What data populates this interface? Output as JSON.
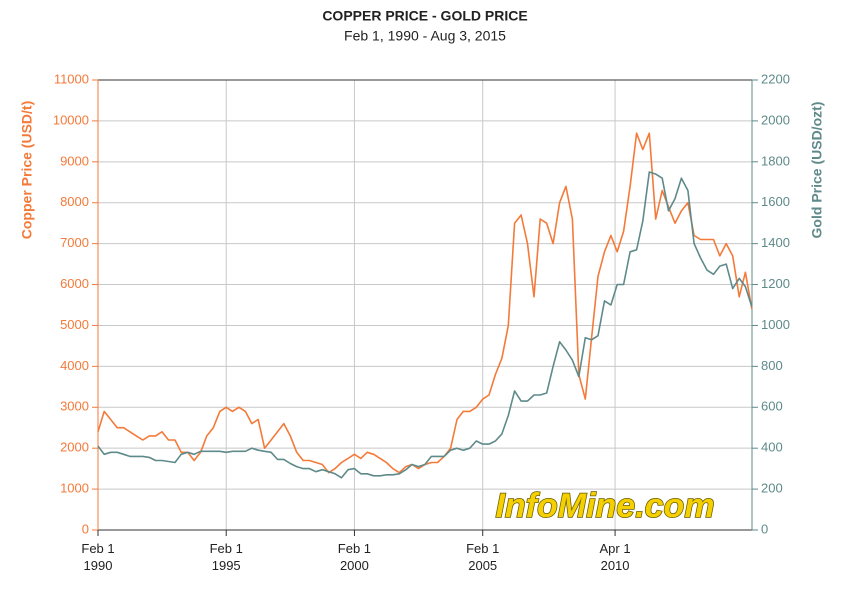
{
  "chart_data": {
    "type": "line",
    "title": "COPPER PRICE - GOLD PRICE",
    "subtitle": "Feb 1, 1990 - Aug 3, 2015",
    "y_label": "Copper Price (USD/t)",
    "y2_label": "Gold Price (USD/ozt)",
    "watermark": "InfoMine.com",
    "grid": true,
    "xlim": [
      "1990-02-01",
      "2015-08-03"
    ],
    "xticks": [
      {
        "value": "1990-02-01",
        "label": "Feb 1\n1990"
      },
      {
        "value": "1995-02-01",
        "label": "Feb 1\n1995"
      },
      {
        "value": "2000-02-01",
        "label": "Feb 1\n2000"
      },
      {
        "value": "2005-02-01",
        "label": "Feb 1\n2005"
      },
      {
        "value": "2010-04-01",
        "label": "Apr 1\n2010"
      }
    ],
    "ylim": [
      0,
      11000
    ],
    "yticks": [
      0,
      1000,
      2000,
      3000,
      4000,
      5000,
      6000,
      7000,
      8000,
      9000,
      10000,
      11000
    ],
    "y2lim": [
      0,
      2200
    ],
    "y2ticks": [
      0,
      200,
      400,
      600,
      800,
      1000,
      1200,
      1400,
      1600,
      1800,
      2000,
      2200
    ],
    "x": [
      "1990-02-01",
      "1990-05-01",
      "1990-08-01",
      "1990-11-01",
      "1991-02-01",
      "1991-05-01",
      "1991-08-01",
      "1991-11-01",
      "1992-02-01",
      "1992-05-01",
      "1992-08-01",
      "1992-11-01",
      "1993-02-01",
      "1993-05-01",
      "1993-08-01",
      "1993-11-01",
      "1994-02-01",
      "1994-05-01",
      "1994-08-01",
      "1994-11-01",
      "1995-02-01",
      "1995-05-01",
      "1995-08-01",
      "1995-11-01",
      "1996-02-01",
      "1996-05-01",
      "1996-08-01",
      "1996-11-01",
      "1997-02-01",
      "1997-05-01",
      "1997-08-01",
      "1997-11-01",
      "1998-02-01",
      "1998-05-01",
      "1998-08-01",
      "1998-11-01",
      "1999-02-01",
      "1999-05-01",
      "1999-08-01",
      "1999-11-01",
      "2000-02-01",
      "2000-05-01",
      "2000-08-01",
      "2000-11-01",
      "2001-02-01",
      "2001-05-01",
      "2001-08-01",
      "2001-11-01",
      "2002-02-01",
      "2002-05-01",
      "2002-08-01",
      "2002-11-01",
      "2003-02-01",
      "2003-05-01",
      "2003-08-01",
      "2003-11-01",
      "2004-02-01",
      "2004-05-01",
      "2004-08-01",
      "2004-11-01",
      "2005-02-01",
      "2005-05-01",
      "2005-08-01",
      "2005-11-01",
      "2006-02-01",
      "2006-05-01",
      "2006-08-01",
      "2006-11-01",
      "2007-02-01",
      "2007-05-01",
      "2007-08-01",
      "2007-11-01",
      "2008-02-01",
      "2008-05-01",
      "2008-08-01",
      "2008-11-01",
      "2009-02-01",
      "2009-05-01",
      "2009-08-01",
      "2009-11-01",
      "2010-02-01",
      "2010-05-01",
      "2010-08-01",
      "2010-11-01",
      "2011-02-01",
      "2011-05-01",
      "2011-08-01",
      "2011-11-01",
      "2012-02-01",
      "2012-05-01",
      "2012-08-01",
      "2012-11-01",
      "2013-02-01",
      "2013-05-01",
      "2013-08-01",
      "2013-11-01",
      "2014-02-01",
      "2014-05-01",
      "2014-08-01",
      "2014-11-01",
      "2015-02-01",
      "2015-05-01",
      "2015-08-01"
    ],
    "series": [
      {
        "name": "Copper Price (USD/t)",
        "color": "#f47a3a",
        "axis": "y",
        "values": [
          2400,
          2900,
          2700,
          2500,
          2500,
          2400,
          2300,
          2200,
          2300,
          2300,
          2400,
          2200,
          2200,
          1900,
          1900,
          1700,
          1900,
          2300,
          2500,
          2900,
          3000,
          2900,
          3000,
          2900,
          2600,
          2700,
          2000,
          2200,
          2400,
          2600,
          2300,
          1900,
          1700,
          1700,
          1650,
          1600,
          1400,
          1500,
          1650,
          1750,
          1850,
          1750,
          1900,
          1850,
          1750,
          1650,
          1500,
          1400,
          1550,
          1600,
          1500,
          1600,
          1650,
          1650,
          1800,
          2000,
          2700,
          2900,
          2900,
          3000,
          3200,
          3300,
          3800,
          4200,
          5000,
          7500,
          7700,
          7000,
          5700,
          7600,
          7500,
          7000,
          8000,
          8400,
          7600,
          3800,
          3200,
          4700,
          6200,
          6800,
          7200,
          6800,
          7300,
          8400,
          9700,
          9300,
          9700,
          7600,
          8300,
          7900,
          7500,
          7800,
          8000,
          7200,
          7100,
          7100,
          7100,
          6700,
          7000,
          6700,
          5700,
          6300,
          5400
        ]
      },
      {
        "name": "Gold Price (USD/ozt)",
        "color": "#5f8a8a",
        "axis": "y2",
        "values": [
          410,
          370,
          380,
          380,
          370,
          360,
          360,
          360,
          355,
          340,
          340,
          335,
          330,
          370,
          380,
          370,
          385,
          385,
          385,
          385,
          380,
          385,
          385,
          385,
          400,
          390,
          385,
          380,
          345,
          345,
          325,
          310,
          300,
          300,
          285,
          295,
          285,
          275,
          255,
          295,
          300,
          275,
          275,
          265,
          265,
          270,
          270,
          275,
          295,
          320,
          310,
          320,
          360,
          360,
          360,
          390,
          400,
          390,
          400,
          435,
          420,
          420,
          435,
          470,
          560,
          680,
          630,
          630,
          660,
          660,
          670,
          800,
          920,
          880,
          830,
          750,
          940,
          930,
          950,
          1120,
          1100,
          1200,
          1200,
          1360,
          1370,
          1510,
          1750,
          1740,
          1720,
          1560,
          1620,
          1720,
          1660,
          1400,
          1330,
          1270,
          1250,
          1290,
          1300,
          1180,
          1230,
          1190,
          1090
        ]
      }
    ]
  }
}
